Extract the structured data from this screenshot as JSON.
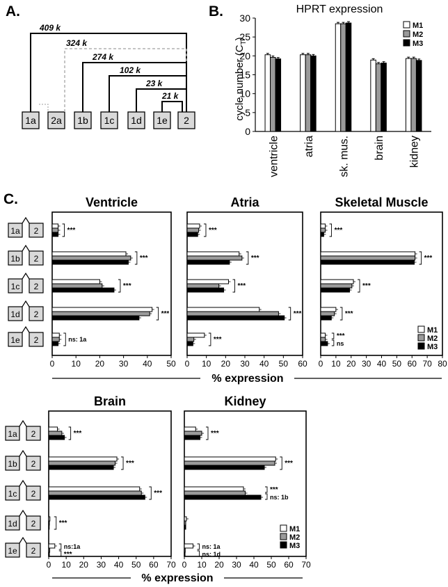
{
  "panels": {
    "A": "A.",
    "B": "B.",
    "C": "C."
  },
  "colors": {
    "M1": "#ffffff",
    "M2": "#9a9a9a",
    "M3": "#000000",
    "exon_box": "#d9d9d9",
    "dashed": "#b0b0b0"
  },
  "diagram": {
    "exons": [
      "1a",
      "2a",
      "1b",
      "1c",
      "1d",
      "1e",
      "2"
    ],
    "introns": [
      {
        "from": "1a",
        "label": "409 k",
        "style": "solid"
      },
      {
        "from": "2a",
        "label": "324 k",
        "style": "dashed"
      },
      {
        "from": "1b",
        "label": "274 k",
        "style": "solid"
      },
      {
        "from": "1c",
        "label": "102 k",
        "style": "solid"
      },
      {
        "from": "1d",
        "label": "23 k",
        "style": "solid"
      },
      {
        "from": "1e",
        "label": "21 k",
        "style": "solid"
      }
    ]
  },
  "chart_data": [
    {
      "type": "bar",
      "panel": "B",
      "title": "HPRT expression",
      "ylabel": "cycle number (CT)",
      "ylabel_main": "cycle number (C",
      "ylabel_sub": "T",
      "ylabel_close": ")",
      "ylim": [
        0,
        30
      ],
      "yticks": [
        0,
        5,
        10,
        15,
        20,
        25,
        30
      ],
      "categories": [
        "ventricle",
        "atria",
        "sk. mus.",
        "brain",
        "kidney"
      ],
      "series": [
        {
          "name": "M1",
          "values": [
            20.3,
            20.3,
            28.5,
            18.9,
            19.3
          ]
        },
        {
          "name": "M2",
          "values": [
            19.6,
            20.3,
            28.5,
            17.9,
            19.3
          ]
        },
        {
          "name": "M3",
          "values": [
            19.2,
            20.0,
            28.7,
            18.1,
            18.8
          ]
        }
      ],
      "legend": "top-right"
    },
    {
      "type": "bar",
      "orientation": "horizontal",
      "panel": "C",
      "title": "Ventricle",
      "categories": [
        "1a",
        "1b",
        "1c",
        "1d",
        "1e"
      ],
      "xlim": [
        0,
        50
      ],
      "xticks": [
        0,
        10,
        20,
        30,
        40,
        50
      ],
      "series": [
        {
          "name": "M1",
          "values": [
            2.5,
            31,
            20,
            42,
            3
          ]
        },
        {
          "name": "M2",
          "values": [
            2.5,
            33,
            21,
            41,
            3
          ]
        },
        {
          "name": "M3",
          "values": [
            2.5,
            32,
            26,
            36.5,
            2.5
          ]
        }
      ],
      "significance": [
        "***",
        "***",
        "***",
        "***",
        "ns: 1a"
      ]
    },
    {
      "type": "bar",
      "orientation": "horizontal",
      "panel": "C",
      "title": "Atria",
      "categories": [
        "1a",
        "1b",
        "1c",
        "1d",
        "1e"
      ],
      "xlim": [
        0,
        60
      ],
      "xticks": [
        0,
        10,
        20,
        30,
        40,
        50,
        60
      ],
      "series": [
        {
          "name": "M1",
          "values": [
            6.5,
            27,
            21.5,
            37.5,
            9
          ]
        },
        {
          "name": "M2",
          "values": [
            6,
            28.5,
            16.5,
            47.5,
            3.5
          ]
        },
        {
          "name": "M3",
          "values": [
            5.5,
            22,
            19,
            50.5,
            3
          ]
        }
      ],
      "significance": [
        "***",
        "***",
        "***",
        "***",
        "***"
      ]
    },
    {
      "type": "bar",
      "orientation": "horizontal",
      "panel": "C",
      "title": "Skeletal Muscle",
      "categories": [
        "1a",
        "1b",
        "1c",
        "1d",
        "1e"
      ],
      "xlim": [
        0,
        80
      ],
      "xticks": [
        0,
        10,
        20,
        30,
        40,
        50,
        60,
        70,
        80
      ],
      "series": [
        {
          "name": "M1",
          "values": [
            3,
            62,
            21.5,
            10,
            3
          ]
        },
        {
          "name": "M2",
          "values": [
            3,
            62,
            20.5,
            9,
            3
          ]
        },
        {
          "name": "M3",
          "values": [
            2,
            61.5,
            19,
            7,
            4.5
          ]
        }
      ],
      "significance": [
        "***",
        "***",
        "***",
        "***",
        "***|ns"
      ]
    },
    {
      "type": "bar",
      "orientation": "horizontal",
      "panel": "C",
      "title": "Brain",
      "categories": [
        "1a",
        "1b",
        "1c",
        "1d",
        "1e"
      ],
      "xlim": [
        0,
        70
      ],
      "xticks": [
        0,
        10,
        20,
        30,
        40,
        50,
        60,
        70
      ],
      "series": [
        {
          "name": "M1",
          "values": [
            5,
            39,
            52,
            0.7,
            3.5
          ]
        },
        {
          "name": "M2",
          "values": [
            7.5,
            38,
            53,
            0.4,
            0.6
          ]
        },
        {
          "name": "M3",
          "values": [
            9,
            37,
            55,
            0.3,
            0.4
          ]
        }
      ],
      "significance": [
        "***",
        "***",
        "***",
        "***",
        "ns:1a|***"
      ]
    },
    {
      "type": "bar",
      "orientation": "horizontal",
      "panel": "C",
      "title": "Kidney",
      "categories": [
        "1a",
        "1b",
        "1c",
        "1d",
        "1e"
      ],
      "xlim": [
        0,
        70
      ],
      "xticks": [
        0,
        10,
        20,
        30,
        40,
        50,
        60,
        70
      ],
      "series": [
        {
          "name": "M1",
          "values": [
            6.5,
            52.5,
            34,
            1.2,
            5
          ]
        },
        {
          "name": "M2",
          "values": [
            10,
            52,
            35,
            0.8,
            0.5
          ]
        },
        {
          "name": "M3",
          "values": [
            9,
            46,
            44,
            0.8,
            0.4
          ]
        }
      ],
      "significance": [
        "***",
        "***",
        "***|ns: 1b",
        "",
        "ns: 1a|ns: 1d"
      ]
    }
  ],
  "legend_labels": [
    "M1",
    "M2",
    "M3"
  ],
  "shared_xlabel": "% expression",
  "exon_second": "2"
}
